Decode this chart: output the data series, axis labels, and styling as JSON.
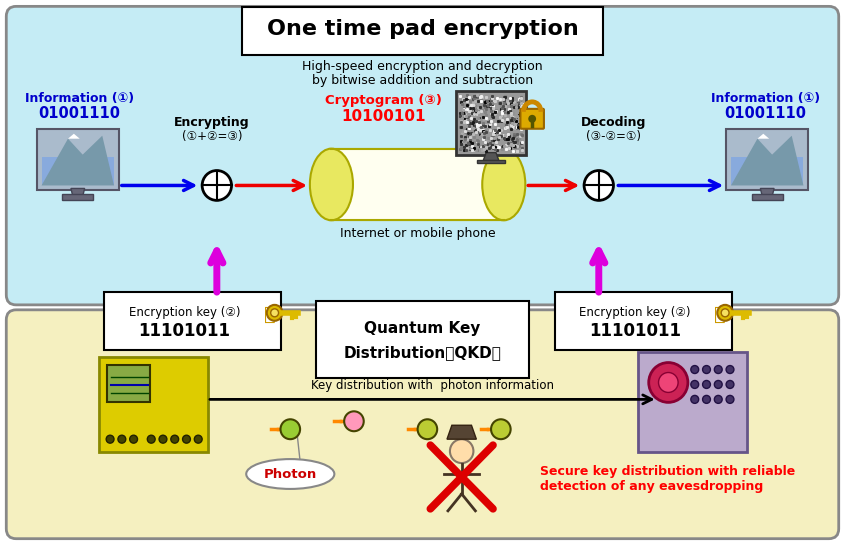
{
  "title": "One time pad encryption",
  "subtitle_line1": "High-speed encryption and decryption",
  "subtitle_line2": "by bitwise addition and subtraction",
  "bg_outer": "#ffffff",
  "bg_top_box": "#c5ecf5",
  "bg_bottom_box": "#f5f0c0",
  "top_box_border": "#888888",
  "bottom_box_border": "#888888",
  "title_box_bg": "#ffffff",
  "title_box_border": "#000000",
  "info_left_label": "Information (①)",
  "info_left_bits": "01001110",
  "info_right_label": "Information (①)",
  "info_right_bits": "01001110",
  "info_color": "#0000cc",
  "encrypt_label": "Encrypting",
  "encrypt_formula": "(①+②=③)",
  "decrypt_label": "Decoding",
  "decrypt_formula": "(③-②=①)",
  "encrypt_decrypt_color": "#000000",
  "cryptogram_label": "Cryptogram (③)",
  "cryptogram_bits": "10100101",
  "cryptogram_color": "#ff0000",
  "internet_label": "Internet or mobile phone",
  "key_left_label": "Encryption key (②)",
  "key_left_bits": "11101011",
  "key_right_label": "Encryption key (②)",
  "key_right_bits": "11101011",
  "key_color": "#000000",
  "qkd_title_line1": "Quantum Key",
  "qkd_title_line2": "Distribution（QKD）",
  "qkd_key_text": "Key distribution with  photon information",
  "photon_label": "Photon",
  "eavesdrop_text_line1": "Secure key distribution with reliable",
  "eavesdrop_text_line2": "detection of any eavesdropping",
  "eavesdrop_color": "#ff0000",
  "arrow_blue": "#0000ee",
  "arrow_red": "#ee0000",
  "arrow_magenta": "#dd00dd",
  "arrow_black": "#000000",
  "fig_width": 8.6,
  "fig_height": 5.54
}
